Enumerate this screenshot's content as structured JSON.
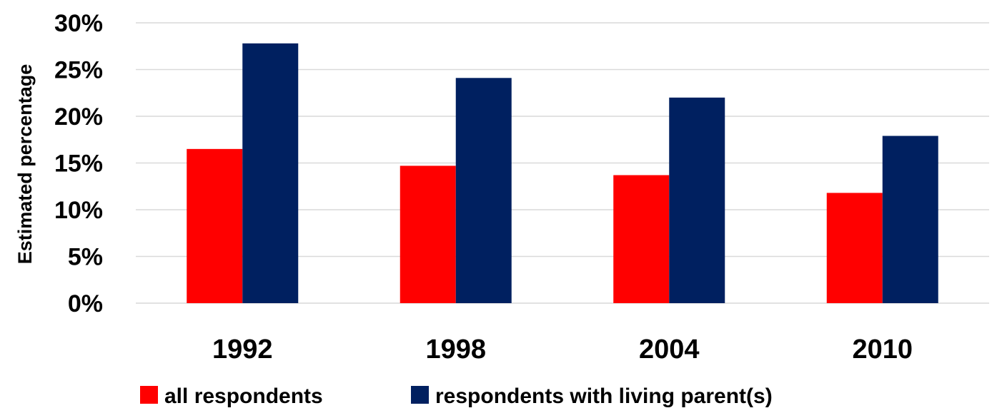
{
  "chart_data": {
    "type": "bar",
    "title": "",
    "xlabel": "",
    "ylabel": "Estimated percentage",
    "ylim": [
      0,
      30
    ],
    "yticks": [
      "0%",
      "5%",
      "10%",
      "15%",
      "20%",
      "25%",
      "30%"
    ],
    "ytick_values": [
      0,
      5,
      10,
      15,
      20,
      25,
      30
    ],
    "grid": true,
    "legend_position": "bottom",
    "categories": [
      "1992",
      "1998",
      "2004",
      "2010"
    ],
    "series": [
      {
        "name": "all respondents",
        "color": "#ff0000",
        "values": [
          16.5,
          14.7,
          13.7,
          11.8
        ]
      },
      {
        "name": "respondents with living parent(s)",
        "color": "#002060",
        "values": [
          27.8,
          24.1,
          22.0,
          17.9
        ]
      }
    ]
  }
}
